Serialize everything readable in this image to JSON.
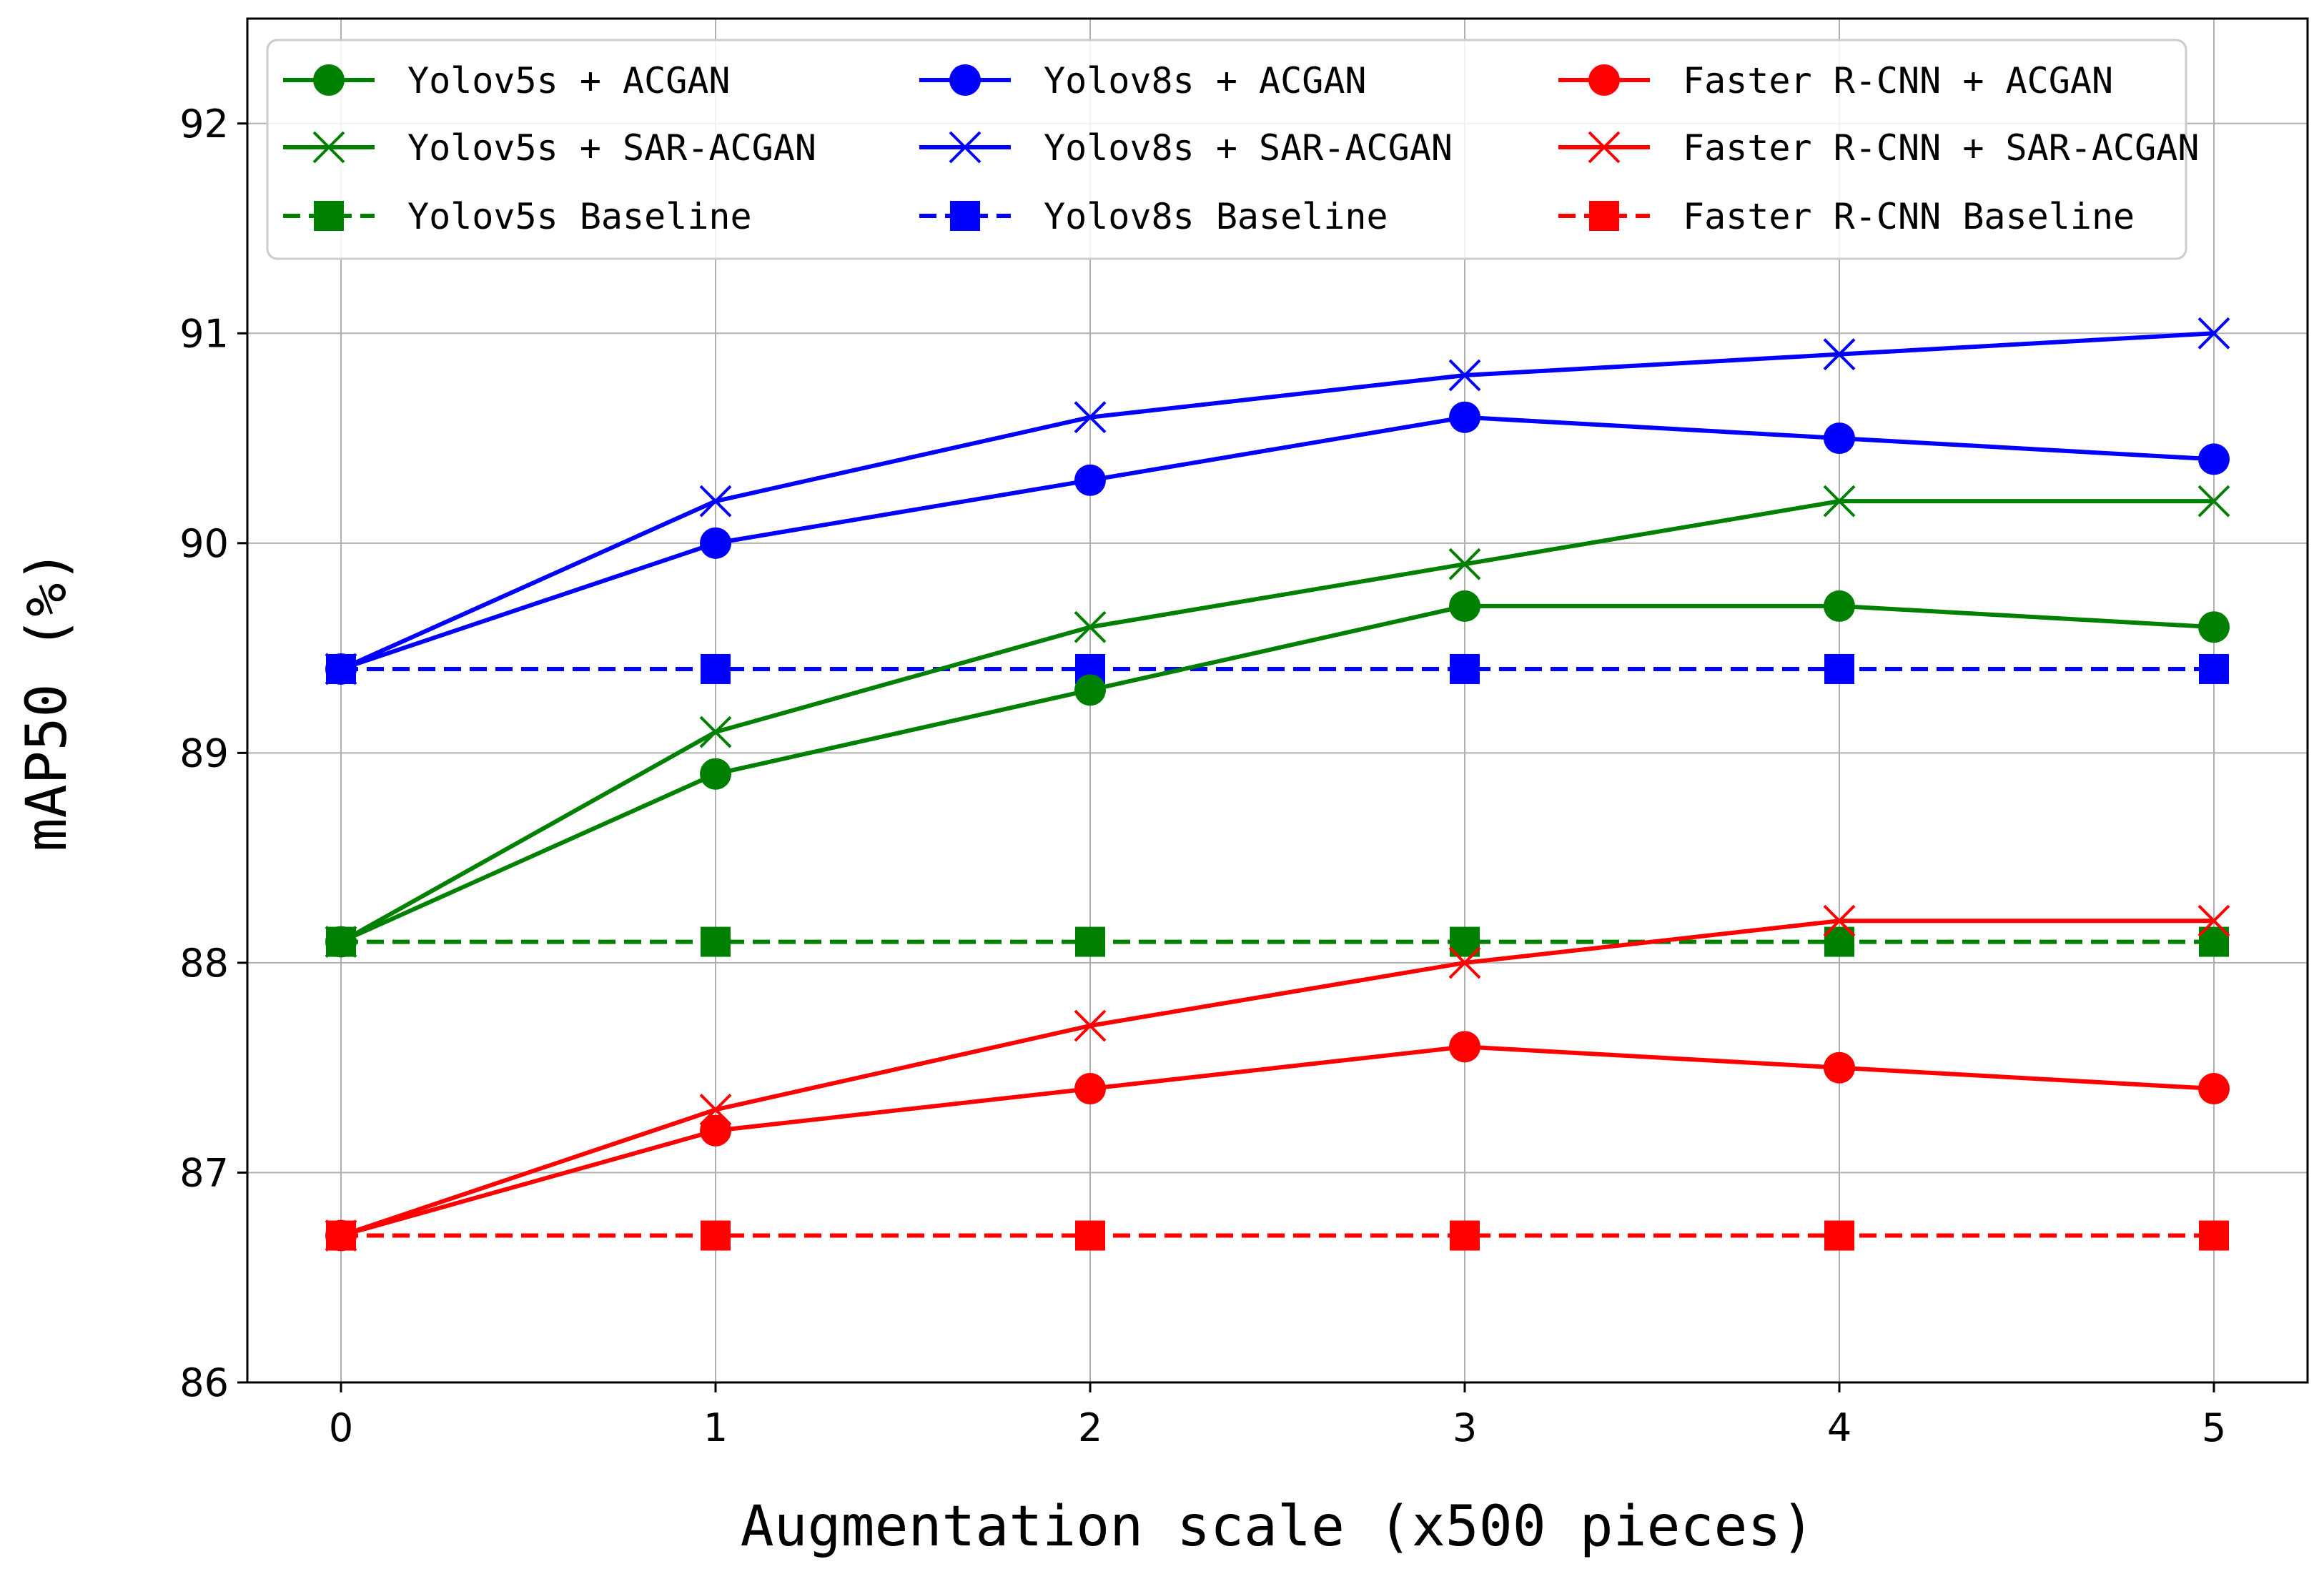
{
  "chart_data": {
    "type": "line",
    "title": "",
    "xlabel": "Augmentation scale (x500 pieces)",
    "ylabel": "mAP50 (%)",
    "x": [
      0,
      1,
      2,
      3,
      4,
      5
    ],
    "xlim": [
      -0.25,
      5.25
    ],
    "ylim": [
      86,
      92.5
    ],
    "xticks": [
      "0",
      "1",
      "2",
      "3",
      "4",
      "5"
    ],
    "yticks": [
      "86",
      "87",
      "88",
      "89",
      "90",
      "91",
      "92"
    ],
    "grid": true,
    "legend_position": "top",
    "series": [
      {
        "name": "Yolov5s + ACGAN",
        "color": "#008000",
        "marker": "circle",
        "dash": "solid",
        "values": [
          88.1,
          88.9,
          89.3,
          89.7,
          89.7,
          89.6
        ]
      },
      {
        "name": "Yolov8s + ACGAN",
        "color": "#0000ff",
        "marker": "circle",
        "dash": "solid",
        "values": [
          89.4,
          90.0,
          90.3,
          90.6,
          90.5,
          90.4
        ]
      },
      {
        "name": "Faster R-CNN + ACGAN",
        "color": "#ff0000",
        "marker": "circle",
        "dash": "solid",
        "values": [
          86.7,
          87.2,
          87.4,
          87.6,
          87.5,
          87.4
        ]
      },
      {
        "name": "Yolov5s + SAR-ACGAN",
        "color": "#008000",
        "marker": "x",
        "dash": "solid",
        "values": [
          88.1,
          89.1,
          89.6,
          89.9,
          90.2,
          90.2
        ]
      },
      {
        "name": "Yolov8s + SAR-ACGAN",
        "color": "#0000ff",
        "marker": "x",
        "dash": "solid",
        "values": [
          89.4,
          90.2,
          90.6,
          90.8,
          90.9,
          91.0
        ]
      },
      {
        "name": "Faster R-CNN + SAR-ACGAN",
        "color": "#ff0000",
        "marker": "x",
        "dash": "solid",
        "values": [
          86.7,
          87.3,
          87.7,
          88.0,
          88.2,
          88.2
        ]
      },
      {
        "name": "Yolov5s Baseline",
        "color": "#008000",
        "marker": "square",
        "dash": "dashed",
        "values": [
          88.1,
          88.1,
          88.1,
          88.1,
          88.1,
          88.1
        ]
      },
      {
        "name": "Yolov8s Baseline",
        "color": "#0000ff",
        "marker": "square",
        "dash": "dashed",
        "values": [
          89.4,
          89.4,
          89.4,
          89.4,
          89.4,
          89.4
        ]
      },
      {
        "name": "Faster R-CNN Baseline",
        "color": "#ff0000",
        "marker": "square",
        "dash": "dashed",
        "values": [
          86.7,
          86.7,
          86.7,
          86.7,
          86.7,
          86.7
        ]
      }
    ]
  }
}
